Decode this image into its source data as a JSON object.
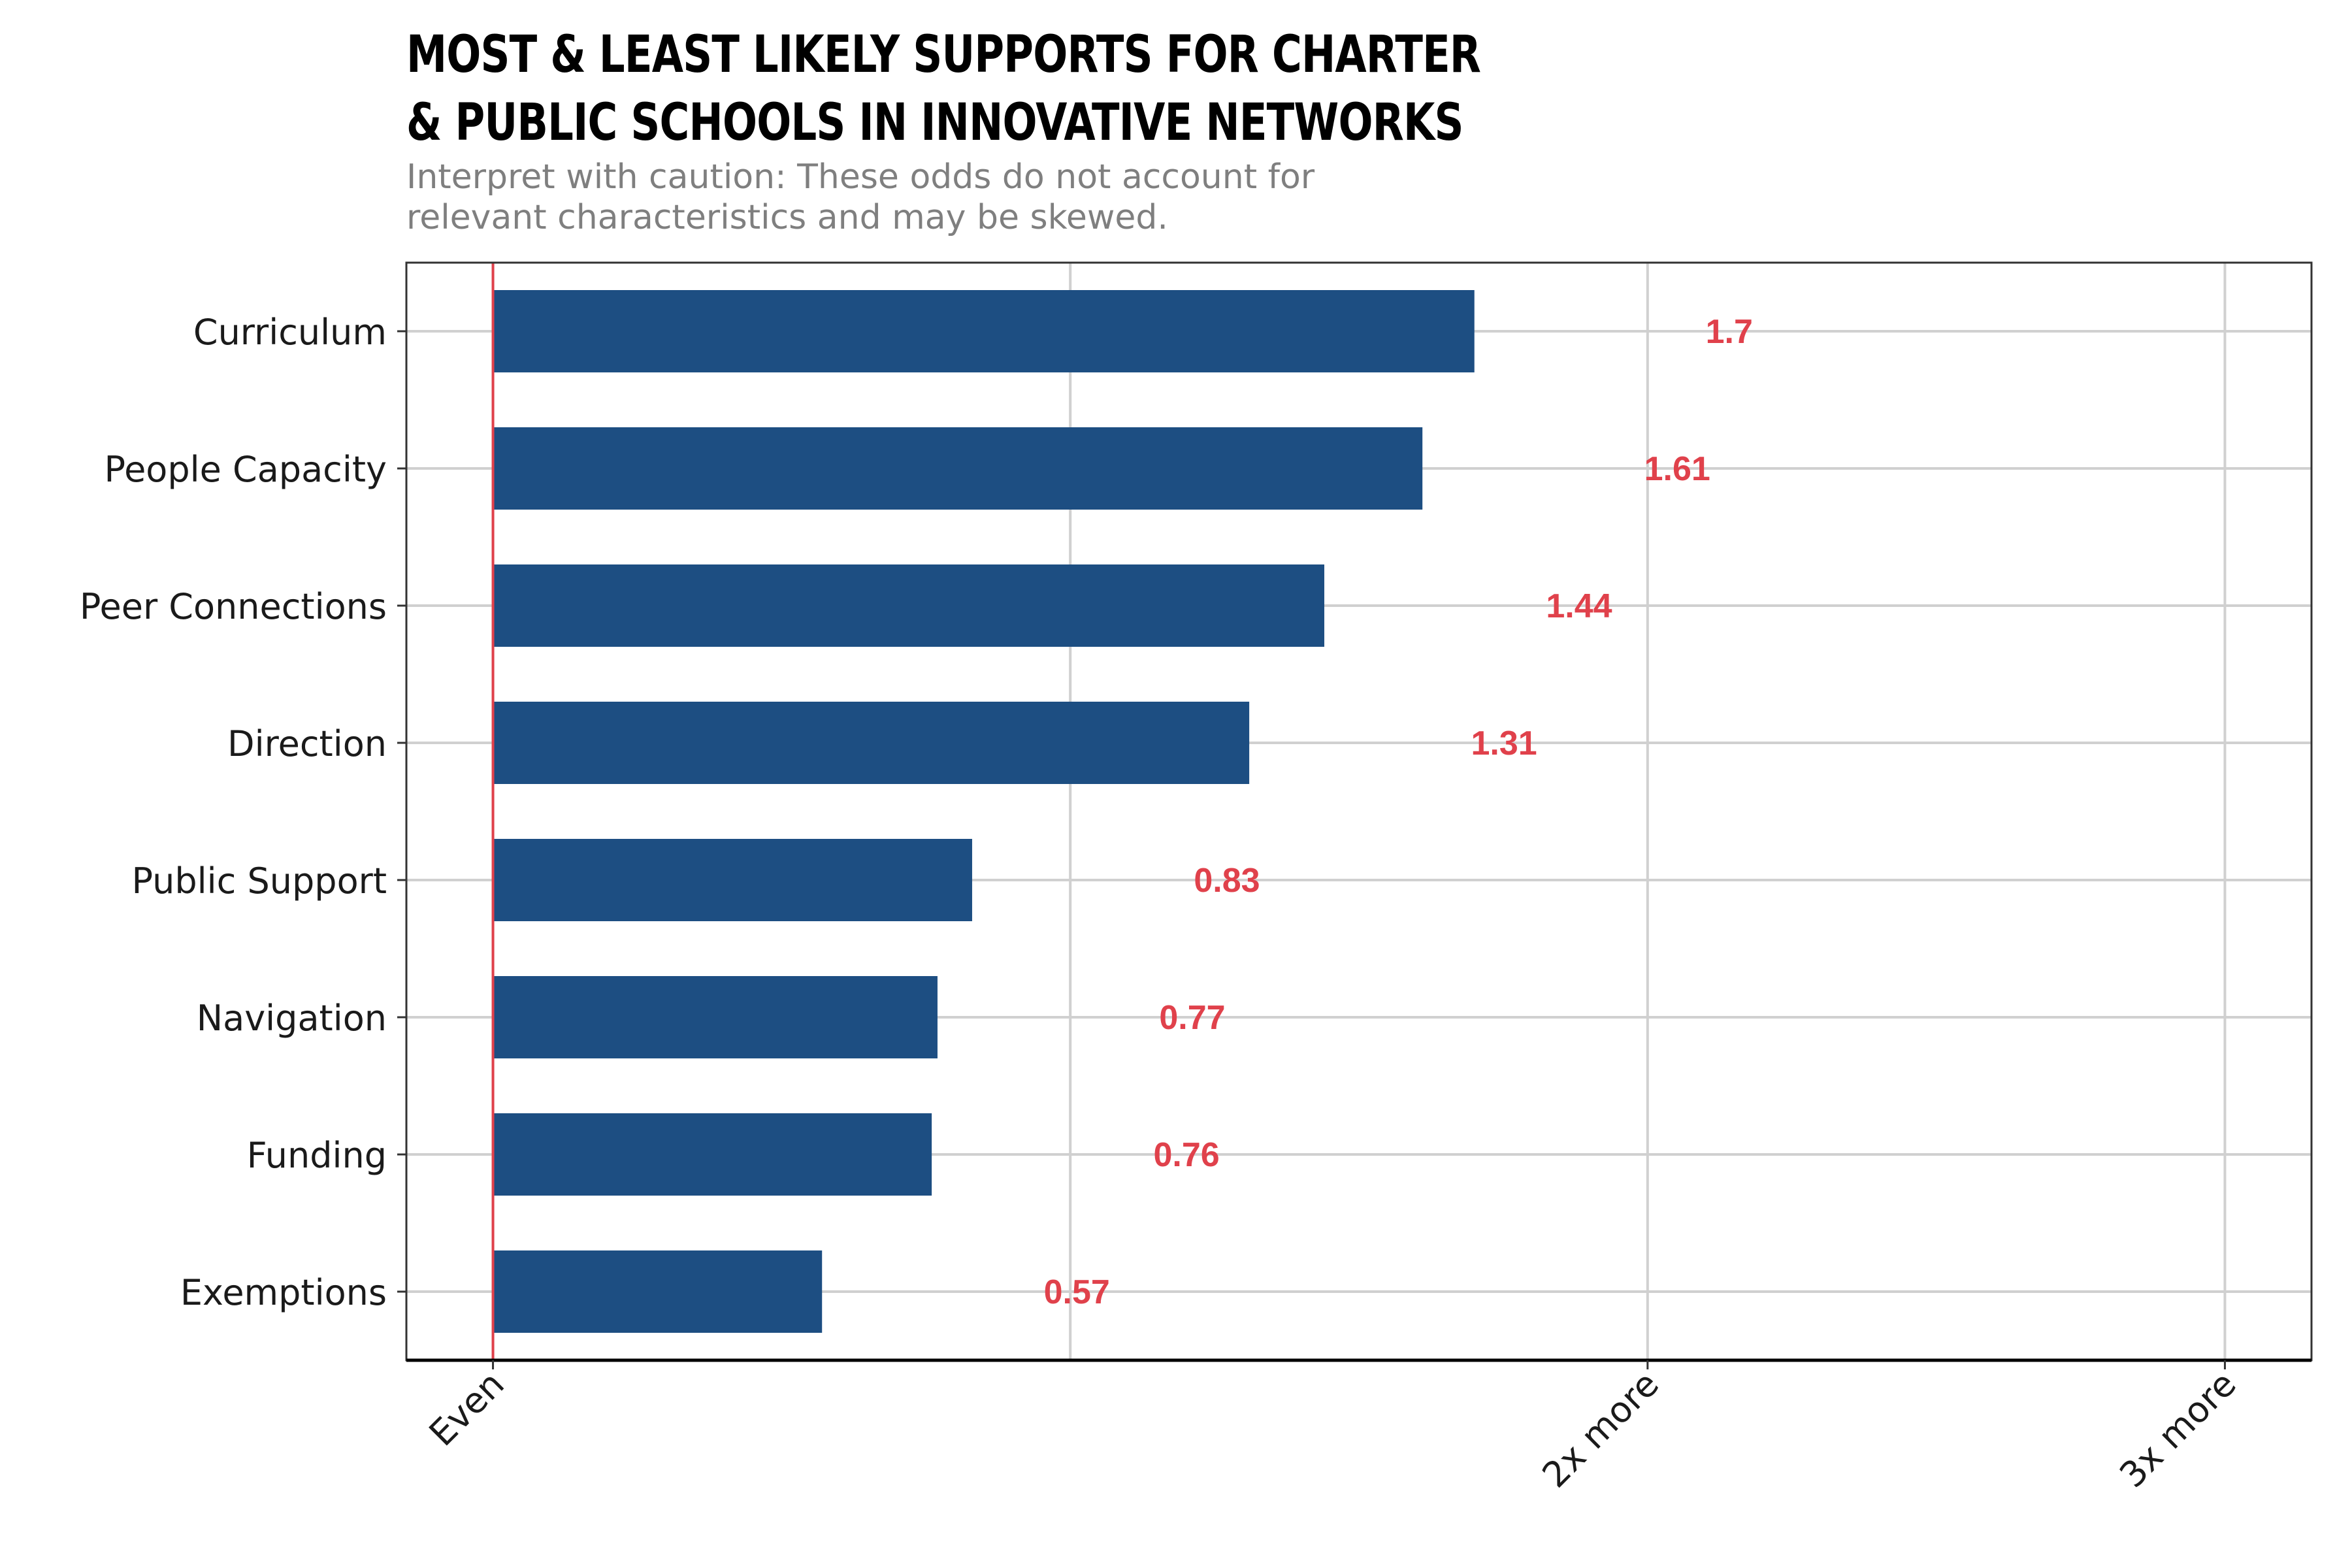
{
  "chart_data": {
    "type": "bar",
    "orientation": "horizontal",
    "title_lines": [
      "Most & least likely supports for charter",
      "& public schools in innovative networks"
    ],
    "subtitle_lines": [
      "Interpret with caution: These odds do not account for",
      "relevant characteristics and may be skewed."
    ],
    "xlabel": "",
    "ylabel": "",
    "categories": [
      "Curriculum",
      "People Capacity",
      "Peer Connections",
      "Direction",
      "Public Support",
      "Navigation",
      "Funding",
      "Exemptions"
    ],
    "values": [
      1.7,
      1.61,
      1.44,
      1.31,
      0.83,
      0.77,
      0.76,
      0.57
    ],
    "data_labels": [
      "1.7",
      "1.61",
      "1.44",
      "1.31",
      "0.83",
      "0.77",
      "0.76",
      "0.57"
    ],
    "xlim": [
      -0.15,
      3.15
    ],
    "x_ticks": [
      {
        "value": 0,
        "label": "Even"
      },
      {
        "value": 2,
        "label": "2x more"
      },
      {
        "value": 3,
        "label": "3x more"
      }
    ],
    "x_minor_gridlines": [
      1
    ],
    "reference_line": 0,
    "grid": true,
    "legend": "none",
    "colors": {
      "bar": "#1d4e82",
      "label": "#e0414b",
      "reference_line": "#e0414b",
      "grid": "#d0d0d0",
      "panel_border": "#333333",
      "subtitle": "#7f7f7f"
    }
  }
}
